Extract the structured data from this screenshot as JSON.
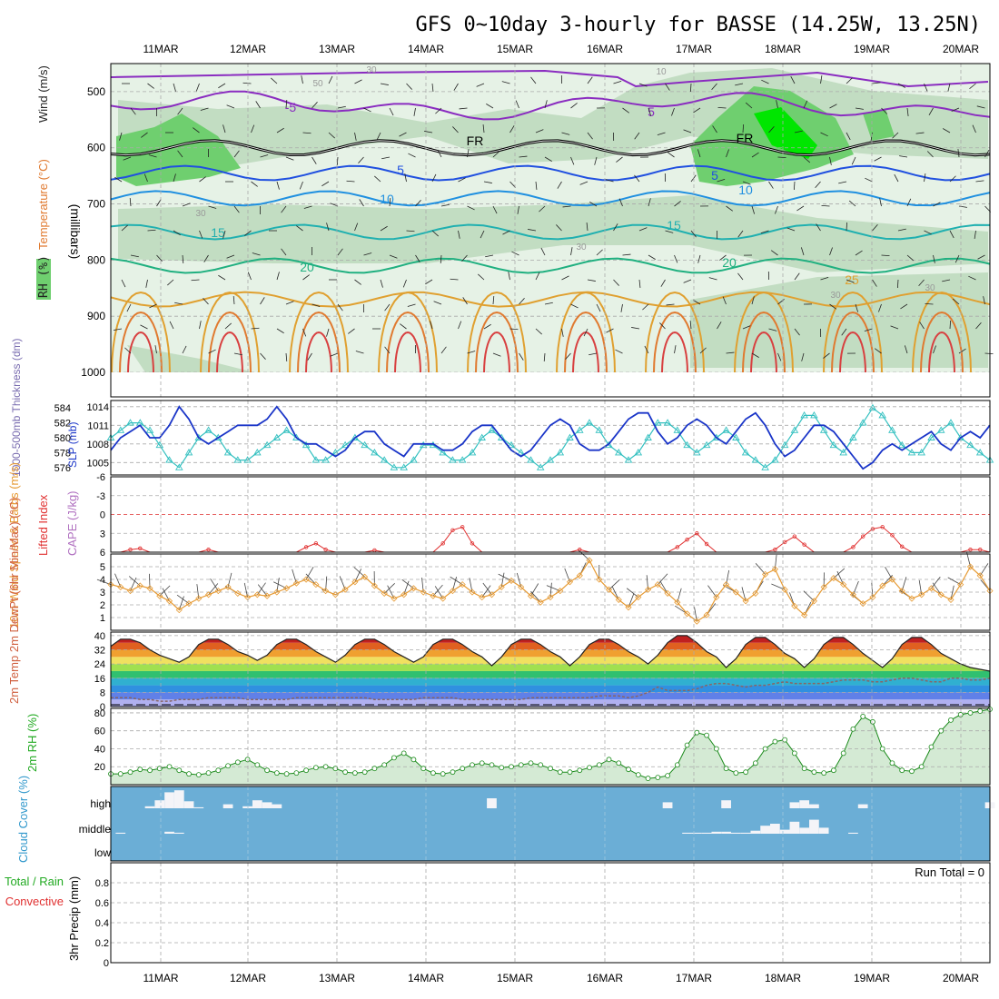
{
  "header": {
    "title": "GFS 0~10day 3-hourly for BASSE (14.25W, 13.25N)"
  },
  "dates": [
    "11MAR",
    "12MAR",
    "13MAR",
    "14MAR",
    "15MAR",
    "16MAR",
    "17MAR",
    "18MAR",
    "19MAR",
    "20MAR"
  ],
  "colors": {
    "grid": "#aaaaaa",
    "rh_light": "#e6f2e6",
    "rh_mid": "#b9d7b9",
    "rh_dark": "#6fcf6f",
    "rh_bright": "#00e600",
    "slp": "#1a35c8",
    "thickness": "#33c0c0",
    "lifted": "#e03030",
    "wind10": "#e69a33",
    "cloud_bg": "#6baed6",
    "rh2m": "#1a8a1a",
    "dewpt": "#886666"
  },
  "chart_data": [
    {
      "type": "contour",
      "name": "upper-air",
      "ylabel_parts": [
        "RH (%)",
        "Temperature (°C)",
        "Wind (m/s)"
      ],
      "yunit": "(millibars)",
      "y_ticks": [
        500,
        600,
        700,
        800,
        900,
        1000
      ],
      "ylim": [
        450,
        1000
      ],
      "temp_contours": [
        {
          "label": "-5",
          "color": "#8a2cc0",
          "level": 525
        },
        {
          "label": "FR",
          "color": "#000000",
          "level": 600
        },
        {
          "label": "5",
          "color": "#2050e0",
          "level": 645
        },
        {
          "label": "10",
          "color": "#2090e0",
          "level": 690
        },
        {
          "label": "15",
          "color": "#20b0b0",
          "level": 750
        },
        {
          "label": "20",
          "color": "#20b080",
          "level": 810
        },
        {
          "label": "25",
          "color": "#e0a030",
          "level": 870
        }
      ],
      "labels_shown": [
        "-5",
        "5",
        "FR",
        "5",
        "10",
        "15",
        "20",
        "25",
        "30",
        "50",
        "10",
        "30"
      ]
    },
    {
      "type": "line",
      "name": "slp-thickness",
      "ylabel_left": "1000-500mb Thickness (dm)",
      "ylabel_right": "SLP (mb)",
      "left_ticks": [
        584,
        582,
        580,
        578,
        576
      ],
      "right_ticks": [
        1014,
        1011,
        1008,
        1005
      ],
      "ylim_slp": [
        1003,
        1015
      ],
      "ylim_thick": [
        575,
        585
      ],
      "slp": [
        1007,
        1009,
        1010,
        1011,
        1009,
        1009,
        1011,
        1014,
        1012,
        1009,
        1008,
        1009,
        1010,
        1011,
        1011,
        1011,
        1012,
        1014,
        1012,
        1009,
        1008,
        1008,
        1007,
        1006,
        1007,
        1009,
        1010,
        1010,
        1008,
        1007,
        1006,
        1008,
        1008,
        1008,
        1007,
        1007,
        1008,
        1010,
        1011,
        1011,
        1009,
        1007,
        1006,
        1007,
        1009,
        1011,
        1012,
        1011,
        1008,
        1007,
        1007,
        1008,
        1010,
        1012,
        1013,
        1013,
        1010,
        1008,
        1009,
        1011,
        1012,
        1011,
        1009,
        1008,
        1010,
        1012,
        1013,
        1011,
        1008,
        1006,
        1007,
        1009,
        1011,
        1011,
        1010,
        1008,
        1006,
        1004,
        1005,
        1007,
        1008,
        1007,
        1008,
        1009,
        1010,
        1008,
        1007,
        1009,
        1010,
        1009,
        1011
      ],
      "thickness": [
        580,
        581,
        582,
        582,
        581,
        579,
        577,
        576,
        578,
        580,
        581,
        580,
        578,
        577,
        577,
        578,
        579,
        580,
        581,
        580,
        579,
        577,
        577,
        578,
        579,
        580,
        579,
        578,
        577,
        576,
        576,
        577,
        579,
        579,
        578,
        577,
        577,
        578,
        580,
        581,
        580,
        579,
        578,
        577,
        576,
        577,
        578,
        580,
        581,
        582,
        581,
        579,
        578,
        577,
        578,
        580,
        582,
        582,
        581,
        579,
        578,
        579,
        580,
        581,
        580,
        578,
        577,
        576,
        577,
        579,
        581,
        583,
        583,
        581,
        579,
        578,
        580,
        582,
        584,
        583,
        581,
        579,
        578,
        578,
        580,
        581,
        582,
        580,
        579,
        578,
        577
      ]
    },
    {
      "type": "line",
      "name": "lifted-cape",
      "ylabel_left": "Lifted Index",
      "ylabel_right": "CAPE (J/kg)",
      "y_ticks": [
        "-6",
        "-3",
        "0",
        "3",
        "6"
      ],
      "ylim": [
        -6,
        6
      ],
      "lifted": [
        6,
        6,
        5.6,
        5.4,
        6,
        6,
        6,
        6,
        6,
        6,
        5.6,
        6,
        6,
        6,
        6,
        6,
        6,
        6,
        6,
        6,
        5.2,
        4.6,
        5.6,
        6,
        6,
        6,
        6,
        5.7,
        6,
        6,
        6,
        6,
        6,
        6,
        4.6,
        2.5,
        2,
        4.6,
        6,
        6,
        6,
        6,
        6,
        6,
        6,
        6,
        6,
        6,
        5.6,
        6,
        6,
        6,
        6,
        6,
        6,
        6,
        6,
        6,
        5.2,
        4,
        3,
        4.7,
        6,
        6,
        6,
        6,
        6,
        6,
        5.6,
        4.4,
        3.5,
        4.8,
        6,
        6,
        6,
        6,
        5.2,
        3.5,
        2.3,
        2,
        3.3,
        5.1,
        6,
        6,
        6,
        6,
        6,
        6,
        5.6,
        5.6,
        6
      ]
    },
    {
      "type": "line",
      "name": "wind10m",
      "ylabel": "10m Wind Speed & Barbs (m/s)",
      "y_ticks": [
        5,
        4,
        3,
        2,
        1
      ],
      "ylim": [
        0,
        6
      ],
      "speed": [
        3.6,
        3.4,
        3.1,
        3.5,
        3.3,
        2.7,
        2.3,
        1.6,
        2.1,
        2.5,
        2.8,
        3.1,
        3.4,
        2.9,
        2.6,
        2.8,
        2.7,
        3.0,
        3.3,
        3.7,
        4.0,
        3.6,
        3.1,
        2.8,
        3.2,
        3.8,
        4.2,
        3.5,
        2.9,
        2.5,
        2.8,
        3.3,
        3.0,
        2.7,
        2.5,
        3.1,
        3.6,
        3.0,
        2.6,
        2.8,
        3.4,
        3.9,
        3.4,
        2.7,
        2.2,
        2.6,
        3.1,
        3.8,
        4.3,
        5.5,
        4.0,
        3.2,
        2.4,
        1.8,
        2.6,
        3.2,
        3.6,
        2.9,
        2.2,
        1.3,
        0.7,
        1.2,
        2.6,
        3.6,
        3.0,
        2.3,
        2.9,
        4.4,
        4.8,
        3.2,
        1.9,
        1.2,
        2.3,
        3.4,
        4.1,
        3.6,
        2.8,
        2.1,
        2.6,
        3.5,
        4.0,
        3.1,
        2.5,
        2.8,
        3.3,
        2.8,
        2.4,
        3.6,
        5.0,
        4.3,
        3.1
      ]
    },
    {
      "type": "area",
      "name": "temp2m",
      "ylabel": "2m Temp 2m DewPt (6hr Min/Max) (°C)",
      "y_ticks": [
        40,
        32,
        24,
        16,
        8,
        0
      ],
      "ylim": [
        0,
        42
      ],
      "temp": [
        34,
        38,
        38,
        36,
        32,
        29,
        27,
        25,
        28,
        35,
        38,
        38,
        35,
        31,
        29,
        26,
        29,
        35,
        38,
        38,
        35,
        31,
        28,
        25,
        29,
        35,
        38,
        38,
        35,
        31,
        28,
        25,
        28,
        35,
        38,
        38,
        35,
        31,
        28,
        23,
        28,
        35,
        38,
        38,
        35,
        31,
        28,
        23,
        28,
        35,
        38,
        38,
        35,
        31,
        28,
        24,
        29,
        36,
        40,
        40,
        36,
        31,
        28,
        22,
        27,
        35,
        39,
        39,
        35,
        30,
        27,
        22,
        27,
        35,
        39,
        39,
        35,
        30,
        26,
        22,
        27,
        35,
        39,
        39,
        35,
        30,
        27,
        24,
        22,
        21,
        20
      ],
      "dewpt": [
        5,
        5,
        5,
        4,
        4,
        3,
        3,
        4,
        4,
        4,
        5,
        5,
        5,
        5,
        4,
        4,
        4,
        4,
        4,
        5,
        5,
        5,
        5,
        5,
        5,
        5,
        5,
        4,
        4,
        4,
        4,
        4,
        5,
        5,
        5,
        5,
        4,
        4,
        4,
        4,
        4,
        4,
        4,
        5,
        5,
        5,
        5,
        5,
        5,
        5,
        6,
        6,
        6,
        5,
        6,
        8,
        11,
        9,
        9,
        9,
        10,
        12,
        13,
        13,
        12,
        11,
        12,
        12,
        13,
        14,
        13,
        13,
        13,
        13,
        14,
        15,
        15,
        15,
        14,
        14,
        15,
        16,
        16,
        15,
        14,
        14,
        16,
        16,
        15,
        15,
        16
      ]
    },
    {
      "type": "area",
      "name": "rh2m",
      "ylabel": "2m RH (%)",
      "y_ticks": [
        80,
        60,
        40,
        20
      ],
      "ylim": [
        0,
        85
      ],
      "rh": [
        12,
        12,
        14,
        17,
        16,
        18,
        20,
        16,
        12,
        11,
        13,
        16,
        21,
        25,
        28,
        22,
        16,
        13,
        12,
        13,
        16,
        19,
        20,
        18,
        14,
        13,
        14,
        18,
        22,
        30,
        35,
        28,
        18,
        13,
        12,
        14,
        18,
        22,
        24,
        22,
        19,
        20,
        22,
        24,
        22,
        18,
        14,
        14,
        16,
        19,
        22,
        28,
        24,
        17,
        11,
        7,
        8,
        10,
        22,
        44,
        58,
        55,
        40,
        18,
        13,
        14,
        24,
        40,
        48,
        50,
        35,
        18,
        14,
        13,
        16,
        35,
        62,
        76,
        70,
        40,
        24,
        16,
        15,
        20,
        42,
        60,
        72,
        78,
        80,
        82,
        84
      ]
    },
    {
      "type": "bar",
      "name": "cloud-cover",
      "ylabel": "Cloud Cover (%)",
      "levels": [
        "high",
        "middle",
        "low"
      ],
      "high": [
        0,
        0,
        0,
        0,
        10,
        40,
        80,
        90,
        35,
        5,
        0,
        0,
        20,
        0,
        10,
        40,
        30,
        20,
        0,
        0,
        0,
        0,
        0,
        0,
        0,
        0,
        0,
        0,
        0,
        0,
        0,
        0,
        0,
        0,
        0,
        0,
        0,
        0,
        0,
        50,
        0,
        0,
        0,
        0,
        0,
        0,
        0,
        0,
        0,
        0,
        0,
        0,
        0,
        0,
        0,
        0,
        0,
        30,
        0,
        0,
        0,
        0,
        0,
        40,
        0,
        0,
        0,
        0,
        0,
        0,
        30,
        40,
        20,
        0,
        0,
        0,
        0,
        20,
        0,
        0,
        0,
        0,
        0,
        0,
        0,
        0,
        0,
        0,
        0,
        0,
        30
      ],
      "middle": [
        0,
        5,
        0,
        0,
        0,
        0,
        10,
        5,
        0,
        0,
        0,
        0,
        0,
        0,
        0,
        0,
        0,
        0,
        0,
        0,
        0,
        0,
        0,
        0,
        0,
        0,
        0,
        0,
        0,
        0,
        0,
        0,
        0,
        0,
        0,
        0,
        0,
        0,
        0,
        0,
        0,
        0,
        0,
        0,
        0,
        0,
        0,
        0,
        0,
        0,
        0,
        0,
        0,
        0,
        0,
        0,
        0,
        0,
        0,
        5,
        5,
        5,
        10,
        10,
        5,
        5,
        15,
        40,
        50,
        20,
        60,
        30,
        70,
        30,
        0,
        0,
        5,
        0,
        0,
        0,
        0,
        0,
        0,
        0,
        0,
        0,
        0,
        0,
        0,
        0,
        0
      ]
    },
    {
      "type": "bar",
      "name": "precip",
      "ylabel": "3hr Precip (mm)",
      "legend": [
        "Total / Rain",
        "Convective"
      ],
      "y_ticks": [
        "0.8",
        "0.6",
        "0.4",
        "0.2",
        "0"
      ],
      "ylim": [
        0,
        1
      ],
      "run_total_label": "Run Total = 0",
      "values": []
    }
  ]
}
